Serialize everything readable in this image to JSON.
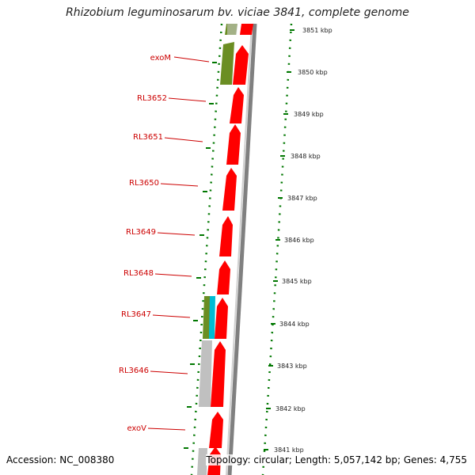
{
  "title": "Rhizobium leguminosarum bv. viciae 3841, complete genome",
  "footer": {
    "accession": "Accession: NC_008380",
    "summary": "Topology: circular; Length: 5,057,142 bp; Genes: 4,755"
  },
  "colors": {
    "forward_gene": "#ff0000",
    "reverse_gene": "#6b8e23",
    "other_reverse": "#c0c0c0",
    "cyan_gene": "#00bcd4",
    "label": "#cc0000",
    "tick": "#007700",
    "backbone": "#808080"
  },
  "gene_labels": [
    "exoM",
    "RL3652",
    "RL3651",
    "RL3650",
    "RL3649",
    "RL3648",
    "RL3647",
    "RL3646",
    "exoV"
  ],
  "kbp_labels": [
    "3851 kbp",
    "3850 kbp",
    "3849 kbp",
    "3848 kbp",
    "3847 kbp",
    "3846 kbp",
    "3845 kbp",
    "3844 kbp",
    "3843 kbp",
    "3842 kbp",
    "3841 kbp"
  ]
}
